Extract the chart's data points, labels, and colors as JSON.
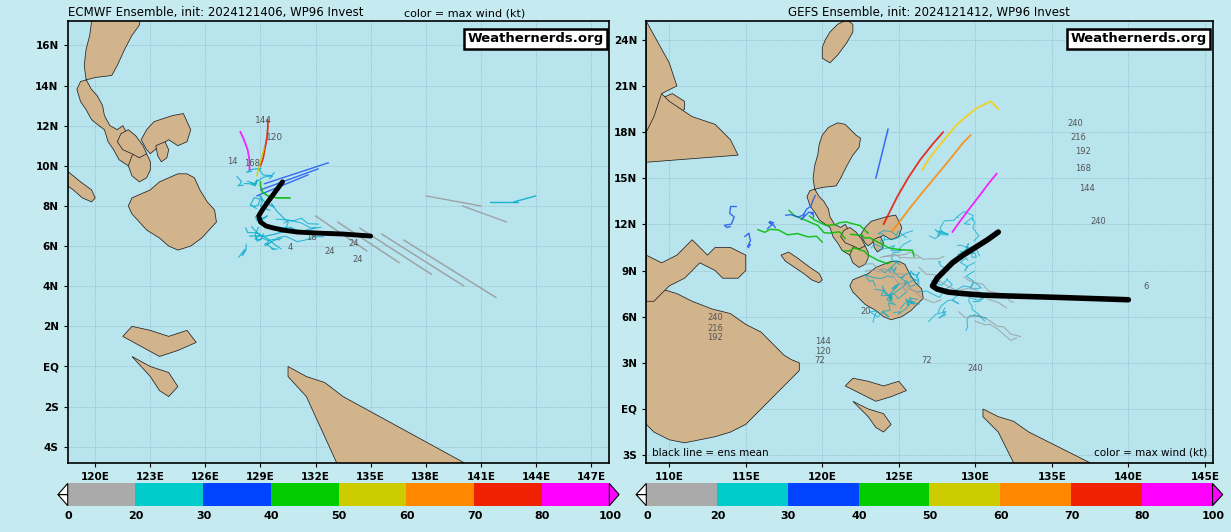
{
  "panel1": {
    "title": "ECMWF Ensemble, init: 2024121406, WP96 Invest",
    "title_right": "color = max wind (kt)",
    "watermark": "Weathernerds.org",
    "lon_min": 118.5,
    "lon_max": 148.0,
    "lat_min": -4.8,
    "lat_max": 17.2,
    "lon_ticks": [
      120,
      123,
      126,
      129,
      132,
      135,
      138,
      141,
      144,
      147
    ],
    "lat_ticks": [
      -4,
      -2,
      0,
      2,
      4,
      6,
      8,
      10,
      12,
      14,
      16
    ],
    "lon_labels": [
      "120E",
      "123E",
      "126E",
      "129E",
      "132E",
      "135E",
      "138E",
      "141E",
      "144E",
      "147E"
    ],
    "lat_labels": [
      "4S",
      "2S",
      "EQ",
      "2N",
      "4N",
      "6N",
      "8N",
      "10N",
      "12N",
      "14N",
      "16N"
    ]
  },
  "panel2": {
    "title": "GEFS Ensemble, init: 2024121412, WP96 Invest",
    "watermark": "Weathernerds.org",
    "bottom_left": "black line = ens mean",
    "bottom_right": "color = max wind (kt)",
    "lon_min": 108.5,
    "lon_max": 145.5,
    "lat_min": -3.5,
    "lat_max": 25.2,
    "lon_ticks": [
      110,
      115,
      120,
      125,
      130,
      135,
      140,
      145
    ],
    "lat_ticks": [
      -3,
      0,
      3,
      6,
      9,
      12,
      15,
      18,
      21,
      24
    ],
    "lon_labels": [
      "110E",
      "115E",
      "120E",
      "125E",
      "130E",
      "135E",
      "140E",
      "145E"
    ],
    "lat_labels": [
      "3S",
      "EQ",
      "3N",
      "6N",
      "9N",
      "12N",
      "15N",
      "18N",
      "21N",
      "24N"
    ]
  },
  "bg_color": "#c5eaf0",
  "land_color": "#d2b48c",
  "ocean_color": "#b8e4ee",
  "grid_color": "#7799aa",
  "map_bg": "#b8e4ee",
  "cb_colors": [
    "#aaaaaa",
    "#00cccc",
    "#0044ff",
    "#00cc00",
    "#cccc00",
    "#ff8800",
    "#ee2200",
    "#ff00ff"
  ],
  "cb_labels": [
    "0",
    "20",
    "30",
    "40",
    "50",
    "60",
    "70",
    "80",
    "100"
  ]
}
